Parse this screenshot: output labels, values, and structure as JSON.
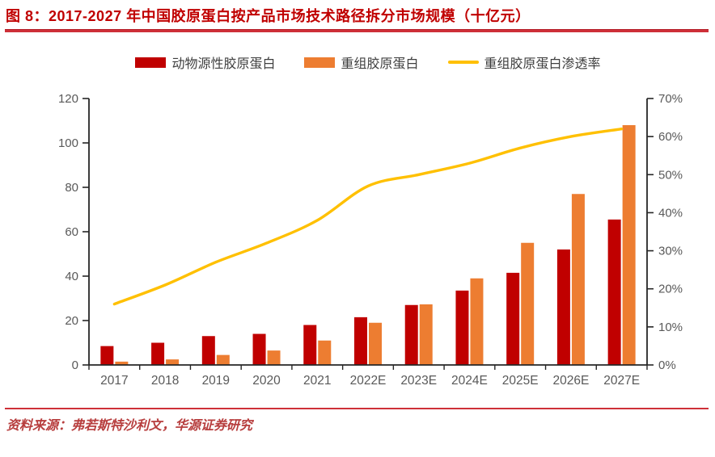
{
  "page": {
    "title": "图 8：2017-2027 年中国胶原蛋白按产品市场技术路径拆分市场规模（十亿元）",
    "source": "资料来源：弗若斯特沙利文，华源证券研究"
  },
  "colors": {
    "title_red": "#C00000",
    "rule_red": "#CE3038",
    "axis_line": "#262626",
    "axis_label": "#595959",
    "legend_text": "#3F3F3F"
  },
  "chart_data": {
    "type": "bar",
    "subtype": "grouped-bars-with-line",
    "categories": [
      "2017",
      "2018",
      "2019",
      "2020",
      "2021",
      "2022E",
      "2023E",
      "2024E",
      "2025E",
      "2026E",
      "2027E"
    ],
    "series": [
      {
        "name": "动物源性胶原蛋白",
        "kind": "bar",
        "axis": "left",
        "color": "#C00000",
        "values": [
          8.5,
          10,
          13,
          14,
          18,
          21.5,
          27,
          33.5,
          41.5,
          52,
          65.5
        ]
      },
      {
        "name": "重组胶原蛋白",
        "kind": "bar",
        "axis": "left",
        "color": "#ED7D31",
        "values": [
          1.5,
          2.5,
          4.5,
          6.5,
          11,
          19,
          27.3,
          39,
          55,
          77,
          108
        ]
      },
      {
        "name": "重组胶原蛋白渗透率",
        "kind": "line",
        "axis": "right",
        "color": "#FFC000",
        "values": [
          16,
          21,
          27,
          32,
          38,
          47,
          50,
          53,
          57,
          60,
          62
        ],
        "unit": "%"
      }
    ],
    "left_axis": {
      "min": 0,
      "max": 120,
      "step": 20,
      "tick_labels": [
        "0",
        "20",
        "40",
        "60",
        "80",
        "100",
        "120"
      ]
    },
    "right_axis": {
      "min": 0,
      "max": 70,
      "step": 10,
      "tick_labels": [
        "0%",
        "10%",
        "20%",
        "30%",
        "40%",
        "50%",
        "60%",
        "70%"
      ]
    },
    "grid": false,
    "legend_position": "top-center",
    "title": "2017-2027 年中国胶原蛋白按产品市场技术路径拆分市场规模（十亿元）",
    "ylabel_left": "十亿元",
    "ylabel_right": "渗透率"
  }
}
